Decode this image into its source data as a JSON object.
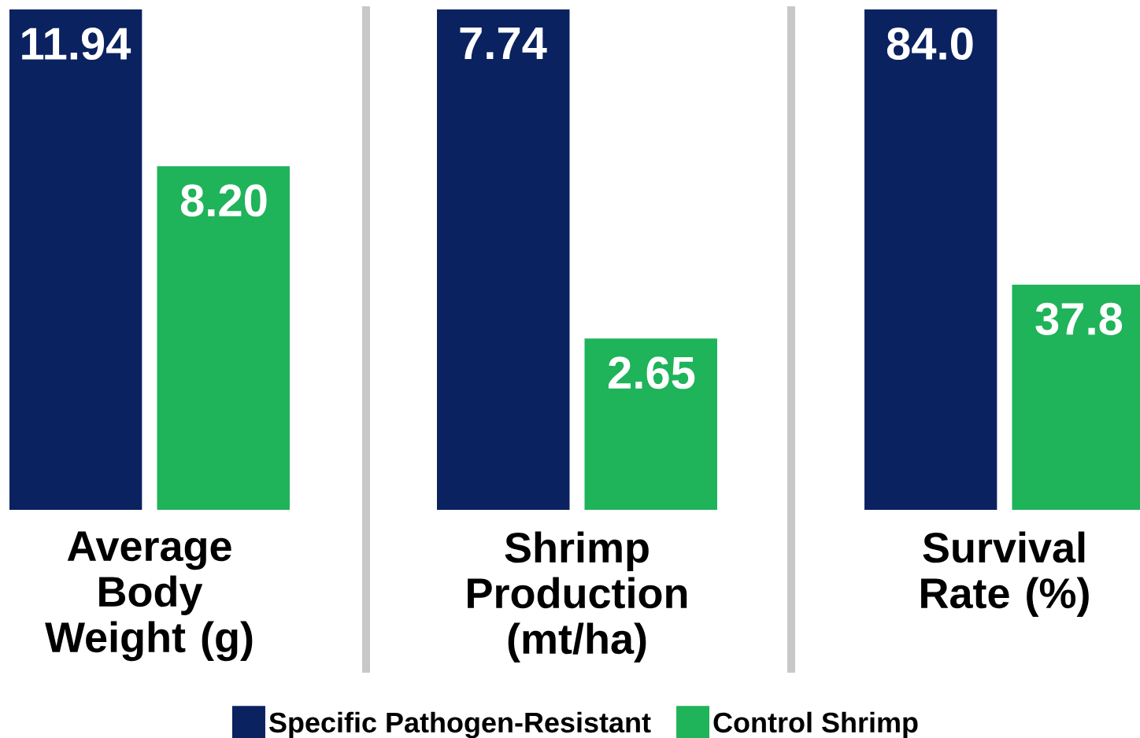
{
  "chart_data": [
    {
      "type": "bar",
      "categories": [
        "Average Body Weight (g)"
      ],
      "series": [
        {
          "color": "#0b2260",
          "values": [
            11.94
          ],
          "value_labels": [
            "11.94"
          ]
        },
        {
          "color": "#1fb35a",
          "values": [
            8.2
          ],
          "value_labels": [
            "8.20"
          ]
        }
      ]
    },
    {
      "type": "bar",
      "categories": [
        "Shrimp Production (mt/ha)"
      ],
      "legend": "bottom",
      "series": [
        {
          "name": "Specific Pathogen-Resistant",
          "color": "#0b2260",
          "values": [
            7.74
          ],
          "value_labels": [
            "7.74"
          ]
        },
        {
          "name": "Control Shrimp",
          "color": "#1fb35a",
          "values": [
            2.65
          ],
          "value_labels": [
            "2.65"
          ]
        }
      ]
    },
    {
      "type": "bar",
      "categories": [
        "Survival Rate (%)"
      ],
      "series": [
        {
          "color": "#0b2260",
          "values": [
            84.0
          ],
          "value_labels": [
            "84.0"
          ]
        },
        {
          "color": "#1fb35a",
          "values": [
            37.8
          ],
          "value_labels": [
            "37.8"
          ]
        }
      ]
    }
  ]
}
